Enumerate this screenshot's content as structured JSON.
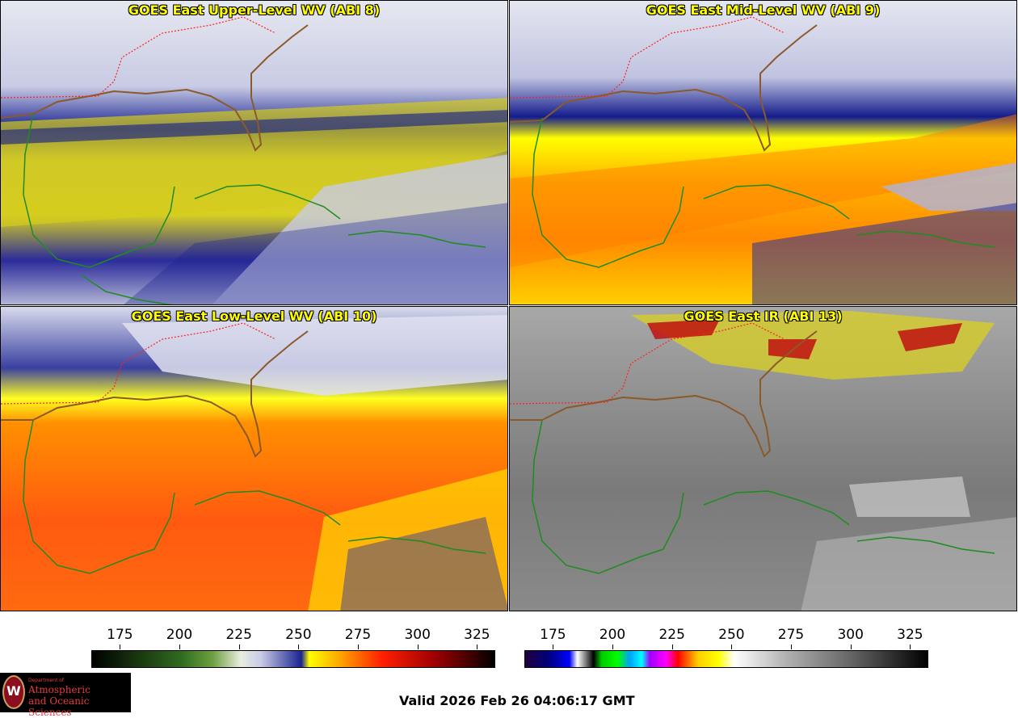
{
  "panels": [
    {
      "title": "GOES East Upper-Level WV (ABI 8)"
    },
    {
      "title": "GOES East Mid-Level WV (ABI 9)"
    },
    {
      "title": "GOES East Low-Level WV (ABI 10)"
    },
    {
      "title": "GOES East IR (ABI 13)"
    }
  ],
  "colorbar_wv": {
    "ticks": [
      "175",
      "200",
      "225",
      "250",
      "275",
      "300",
      "325"
    ]
  },
  "colorbar_ir": {
    "ticks": [
      "175",
      "200",
      "225",
      "250",
      "275",
      "300",
      "325"
    ]
  },
  "valid_time": "Valid 2026 Feb 26 04:06:17 GMT",
  "logo": {
    "line1": "Department of",
    "line2": "Atmospheric",
    "line3": "and Oceanic Sciences",
    "seal": "W"
  },
  "colors": {
    "coast": "#1e8c1e",
    "us_coast": "#8b5a2b",
    "state_border": "#ff2020",
    "title": "#ffff00"
  }
}
